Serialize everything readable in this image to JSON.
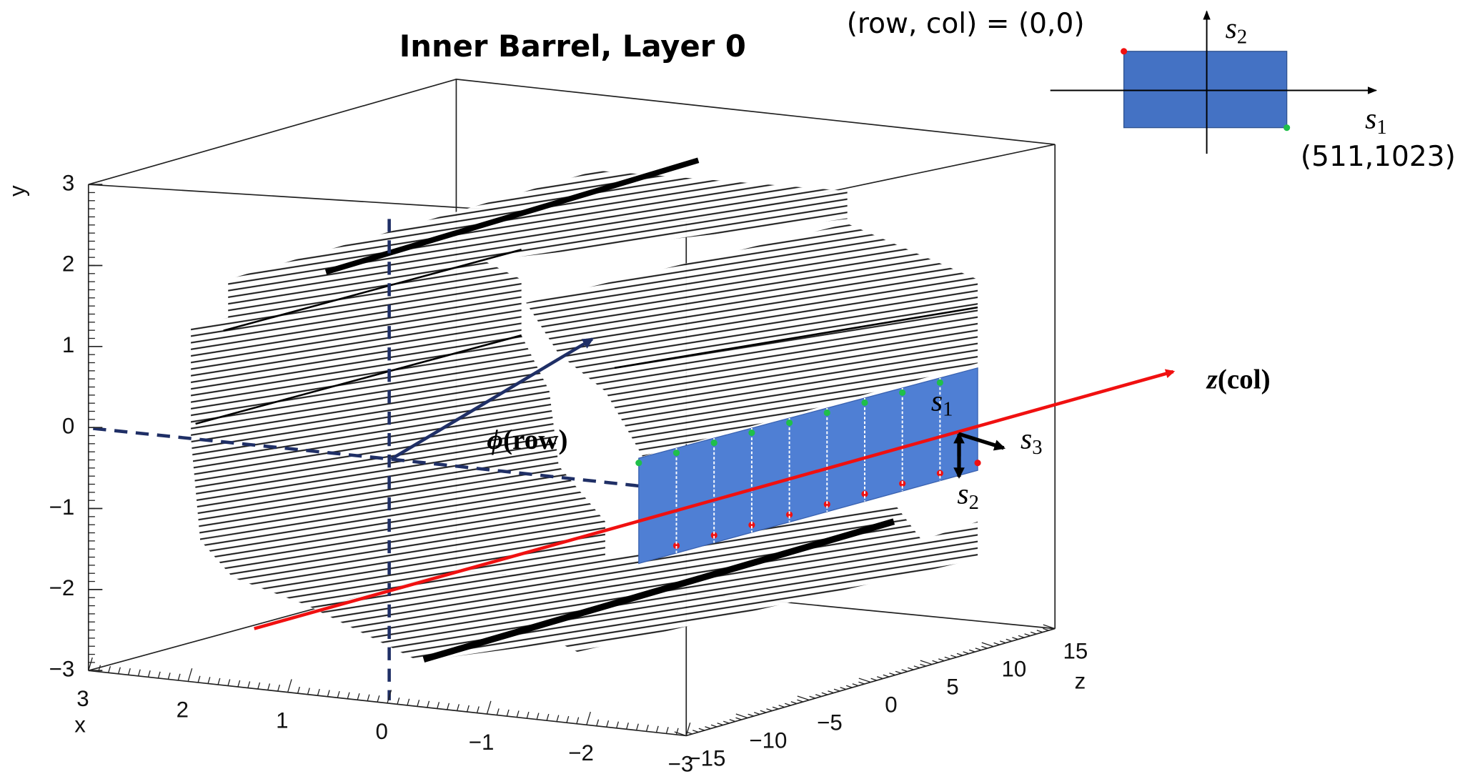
{
  "title": "Inner Barrel, Layer 0",
  "axes": {
    "y": {
      "label": "y",
      "ticks": [
        "3",
        "2",
        "1",
        "0",
        "−1",
        "−2",
        "−3"
      ]
    },
    "x": {
      "label": "x",
      "ticks": [
        "3",
        "2",
        "1",
        "0",
        "−1",
        "−2",
        "−3"
      ]
    },
    "z": {
      "label": "z",
      "ticks": [
        "−15",
        "−10",
        "−5",
        "0",
        "5",
        "10",
        "15"
      ]
    }
  },
  "annotations": {
    "z_axis": {
      "symbol": "z",
      "text": "(col)"
    },
    "phi_axis": {
      "symbol": "ϕ",
      "text": "(row)"
    },
    "s1": {
      "symbol": "s",
      "subscript": "1"
    },
    "s2": {
      "symbol": "s",
      "subscript": "2"
    },
    "s3": {
      "symbol": "s",
      "subscript": "3"
    }
  },
  "inset": {
    "origin_label": "(row, col) = (0,0)",
    "corner_label": "(511,1023)",
    "s1": {
      "symbol": "s",
      "subscript": "1"
    },
    "s2": {
      "symbol": "s",
      "subscript": "2"
    }
  }
}
